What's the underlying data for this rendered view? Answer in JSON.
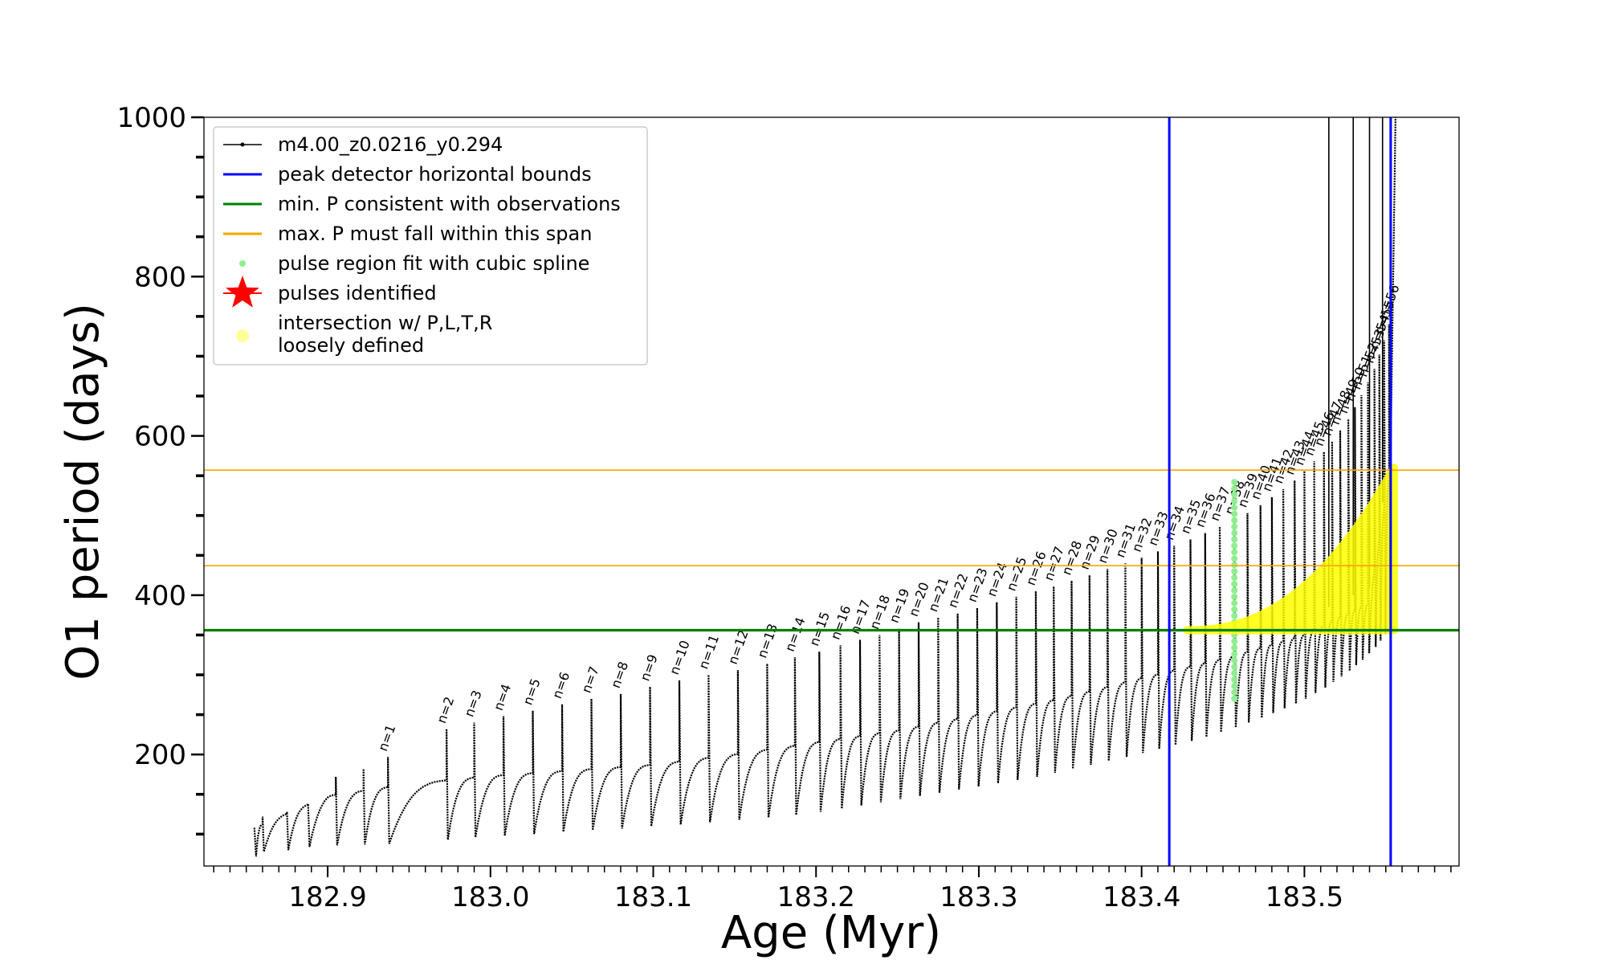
{
  "chart_data": {
    "type": "line",
    "xlabel": "Age (Myr)",
    "ylabel": "O1 period (days)",
    "xlim": [
      182.824,
      183.595
    ],
    "ylim": [
      60,
      1000
    ],
    "grid": false,
    "legend_placement": "top-left",
    "xticks": [
      182.9,
      183.0,
      183.1,
      183.2,
      183.3,
      183.4,
      183.5
    ],
    "xtick_labels": [
      "182.9",
      "183.0",
      "183.1",
      "183.2",
      "183.3",
      "183.4",
      "183.5"
    ],
    "yticks": [
      200,
      400,
      600,
      800,
      1000
    ],
    "ytick_labels": [
      "200",
      "400",
      "600",
      "800",
      "1000"
    ],
    "legend": [
      {
        "label": "m4.00_z0.0216_y0.294",
        "color": "#000000",
        "marker": "line-dot"
      },
      {
        "label": "peak detector horizontal bounds",
        "color": "#0000ff",
        "marker": "line"
      },
      {
        "label": "min. P consistent with observations",
        "color": "#008000",
        "marker": "line"
      },
      {
        "label": "max. P must fall within this span",
        "color": "#ffa500",
        "marker": "line"
      },
      {
        "label": "pulse region fit with cubic spline",
        "color": "#90ee90",
        "marker": "dot"
      },
      {
        "label": "pulses identified",
        "color": "#ff0000",
        "marker": "star"
      },
      {
        "label": "intersection w/ P,L,T,R\nloosely defined",
        "color": "#ffff99",
        "marker": "dot"
      }
    ],
    "vertical_lines": {
      "color": "#0000ff",
      "x": [
        183.417,
        183.553
      ]
    },
    "min_period_line": {
      "color": "#008000",
      "y": 356
    },
    "max_period_span": {
      "color": "#ffa500",
      "y": [
        437,
        557
      ]
    },
    "highlight": {
      "color": "#ffff00",
      "x_range": [
        183.428,
        183.555
      ],
      "y_range": [
        356,
        560
      ]
    },
    "spline_region": {
      "color": "#90ee90",
      "x": 183.457,
      "y_range": [
        270,
        545
      ]
    },
    "series_color": "#000000",
    "base_curve": {
      "x": [
        182.855,
        182.9,
        182.95,
        183.0,
        183.05,
        183.1,
        183.15,
        183.2,
        183.25,
        183.3,
        183.35,
        183.4,
        183.45,
        183.5,
        183.54,
        183.555
      ],
      "y": [
        108,
        148,
        163,
        173,
        180,
        187,
        200,
        215,
        230,
        250,
        270,
        296,
        320,
        350,
        390,
        590
      ]
    },
    "pulses": [
      {
        "label": "n=1",
        "x": 182.937,
        "peak": 197,
        "min": 88
      },
      {
        "label": "n=2",
        "x": 182.973,
        "peak": 232,
        "min": 93
      },
      {
        "label": "n=3",
        "x": 182.99,
        "peak": 240,
        "min": 96
      },
      {
        "label": "n=4",
        "x": 183.008,
        "peak": 248,
        "min": 98
      },
      {
        "label": "n=5",
        "x": 183.026,
        "peak": 255,
        "min": 100
      },
      {
        "label": "n=6",
        "x": 183.044,
        "peak": 263,
        "min": 103
      },
      {
        "label": "n=7",
        "x": 183.062,
        "peak": 270,
        "min": 105
      },
      {
        "label": "n=8",
        "x": 183.08,
        "peak": 276,
        "min": 107
      },
      {
        "label": "n=9",
        "x": 183.098,
        "peak": 285,
        "min": 110
      },
      {
        "label": "n=10",
        "x": 183.116,
        "peak": 293,
        "min": 112
      },
      {
        "label": "n=11",
        "x": 183.134,
        "peak": 300,
        "min": 115
      },
      {
        "label": "n=12",
        "x": 183.152,
        "peak": 306,
        "min": 118
      },
      {
        "label": "n=13",
        "x": 183.17,
        "peak": 314,
        "min": 121
      },
      {
        "label": "n=14",
        "x": 183.187,
        "peak": 322,
        "min": 124
      },
      {
        "label": "n=15",
        "x": 183.202,
        "peak": 329,
        "min": 128
      },
      {
        "label": "n=16",
        "x": 183.215,
        "peak": 337,
        "min": 132
      },
      {
        "label": "n=17",
        "x": 183.227,
        "peak": 344,
        "min": 136
      },
      {
        "label": "n=18",
        "x": 183.239,
        "peak": 350,
        "min": 140
      },
      {
        "label": "n=19",
        "x": 183.251,
        "peak": 358,
        "min": 144
      },
      {
        "label": "n=20",
        "x": 183.263,
        "peak": 366,
        "min": 148
      },
      {
        "label": "n=21",
        "x": 183.275,
        "peak": 372,
        "min": 152
      },
      {
        "label": "n=22",
        "x": 183.287,
        "peak": 377,
        "min": 156
      },
      {
        "label": "n=23",
        "x": 183.299,
        "peak": 384,
        "min": 160
      },
      {
        "label": "n=24",
        "x": 183.311,
        "peak": 391,
        "min": 164
      },
      {
        "label": "n=25",
        "x": 183.323,
        "peak": 398,
        "min": 168
      },
      {
        "label": "n=26",
        "x": 183.335,
        "peak": 405,
        "min": 172
      },
      {
        "label": "n=27",
        "x": 183.346,
        "peak": 411,
        "min": 177
      },
      {
        "label": "n=28",
        "x": 183.357,
        "peak": 418,
        "min": 182
      },
      {
        "label": "n=29",
        "x": 183.368,
        "peak": 425,
        "min": 187
      },
      {
        "label": "n=30",
        "x": 183.379,
        "peak": 433,
        "min": 192
      },
      {
        "label": "n=31",
        "x": 183.39,
        "peak": 440,
        "min": 197
      },
      {
        "label": "n=32",
        "x": 183.4,
        "peak": 447,
        "min": 202
      },
      {
        "label": "n=33",
        "x": 183.41,
        "peak": 455,
        "min": 207
      },
      {
        "label": "n=34",
        "x": 183.42,
        "peak": 462,
        "min": 212
      },
      {
        "label": "n=35",
        "x": 183.43,
        "peak": 470,
        "min": 217
      },
      {
        "label": "n=36",
        "x": 183.439,
        "peak": 478,
        "min": 222
      },
      {
        "label": "n=37",
        "x": 183.448,
        "peak": 486,
        "min": 228
      },
      {
        "label": "n=38",
        "x": 183.457,
        "peak": 494,
        "min": 234
      },
      {
        "label": "n=39",
        "x": 183.465,
        "peak": 503,
        "min": 240
      },
      {
        "label": "n=40",
        "x": 183.473,
        "peak": 513,
        "min": 246
      },
      {
        "label": "n=41",
        "x": 183.48,
        "peak": 523,
        "min": 252
      },
      {
        "label": "n=42",
        "x": 183.487,
        "peak": 533,
        "min": 258
      },
      {
        "label": "n=43",
        "x": 183.494,
        "peak": 544,
        "min": 264
      },
      {
        "label": "n=44",
        "x": 183.5,
        "peak": 556,
        "min": 270
      },
      {
        "label": "n=45",
        "x": 183.506,
        "peak": 568,
        "min": 277
      },
      {
        "label": "n=46",
        "x": 183.512,
        "peak": 580,
        "min": 284
      },
      {
        "label": "n=47",
        "x": 183.517,
        "peak": 593,
        "min": 291
      },
      {
        "label": "n=48",
        "x": 183.522,
        "peak": 607,
        "min": 298
      },
      {
        "label": "n=49",
        "x": 183.527,
        "peak": 621,
        "min": 305
      },
      {
        "label": "n=50",
        "x": 183.531,
        "peak": 636,
        "min": 312
      },
      {
        "label": "n=51",
        "x": 183.535,
        "peak": 651,
        "min": 319
      },
      {
        "label": "n=52",
        "x": 183.539,
        "peak": 667,
        "min": 327
      },
      {
        "label": "n=53",
        "x": 183.543,
        "peak": 684,
        "min": 335
      },
      {
        "label": "n=54",
        "x": 183.546,
        "peak": 702,
        "min": 343
      },
      {
        "label": "n=55",
        "x": 183.549,
        "peak": 720,
        "min": 351
      },
      {
        "label": "n=56",
        "x": 183.552,
        "peak": 740,
        "min": 360
      }
    ]
  }
}
